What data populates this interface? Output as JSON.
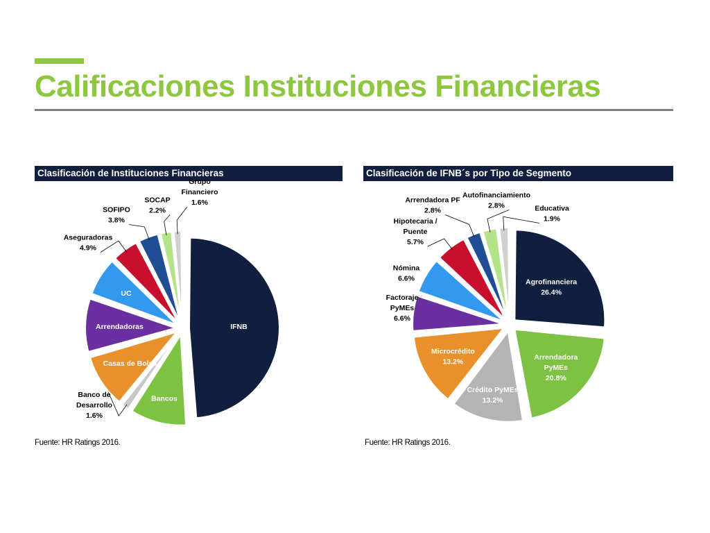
{
  "page": {
    "title": "Calificaciones Instituciones Financieras",
    "accent_color": "#8dc63f",
    "header_color": "#0f1f3d"
  },
  "chart_data": [
    {
      "type": "pie",
      "title": "Clasificación de Instituciones Financieras",
      "source": "Fuente: HR Ratings 2016.",
      "slices": [
        {
          "label": "IFNB",
          "value": 48.9,
          "value_label": "48.9%",
          "color": "#0f1f3d"
        },
        {
          "label": "Bancos",
          "value": 10.3,
          "value_label": "10.3%",
          "color": "#7dc242"
        },
        {
          "label": "Banco de Desarrollo",
          "value": 1.6,
          "value_label": "1.6%",
          "color": "#c8c8c8"
        },
        {
          "label": "Casas de Bolsa",
          "value": 9.8,
          "value_label": "9.8%",
          "color": "#e8902a"
        },
        {
          "label": "Arrendadoras",
          "value": 9.8,
          "value_label": "9.8%",
          "color": "#6a2fa0"
        },
        {
          "label": "UC",
          "value": 7.1,
          "value_label": "7.1%",
          "color": "#3399ee"
        },
        {
          "label": "Aseguradoras",
          "value": 4.9,
          "value_label": "4.9%",
          "color": "#c8102e"
        },
        {
          "label": "SOFIPO",
          "value": 3.8,
          "value_label": "3.8%",
          "color": "#1f4e96"
        },
        {
          "label": "SOCAP",
          "value": 2.2,
          "value_label": "2.2%",
          "color": "#b5e38a"
        },
        {
          "label": "Grupo Financiero",
          "value": 1.6,
          "value_label": "1.6%",
          "color": "#d0d0d0"
        }
      ]
    },
    {
      "type": "pie",
      "title": "Clasificación de IFNB´s por Tipo de Segmento",
      "source": "Fuente: HR Ratings 2016.",
      "slices": [
        {
          "label": "Agrofinanciera",
          "value": 26.4,
          "value_label": "26.4%",
          "color": "#0f1f3d"
        },
        {
          "label": "Arrendadora PyMEs",
          "value": 20.8,
          "value_label": "20.8%",
          "color": "#7dc242"
        },
        {
          "label": "Crédito PyMEs",
          "value": 13.2,
          "value_label": "13.2%",
          "color": "#b4b4b4"
        },
        {
          "label": "Microcrédito",
          "value": 13.2,
          "value_label": "13.2%",
          "color": "#e8902a"
        },
        {
          "label": "Factoraje PyMEs",
          "value": 6.6,
          "value_label": "6.6%",
          "color": "#6a2fa0"
        },
        {
          "label": "Nómina",
          "value": 6.6,
          "value_label": "6.6%",
          "color": "#3399ee"
        },
        {
          "label": "Hipotecaria / Puente",
          "value": 5.7,
          "value_label": "5.7%",
          "color": "#c8102e"
        },
        {
          "label": "Arrendadora PF",
          "value": 2.8,
          "value_label": "2.8%",
          "color": "#1f4e96"
        },
        {
          "label": "Autofinanciamiento",
          "value": 2.8,
          "value_label": "2.8%",
          "color": "#b5e38a"
        },
        {
          "label": "Educativa",
          "value": 1.9,
          "value_label": "1.9%",
          "color": "#d0d0d0"
        }
      ]
    }
  ]
}
